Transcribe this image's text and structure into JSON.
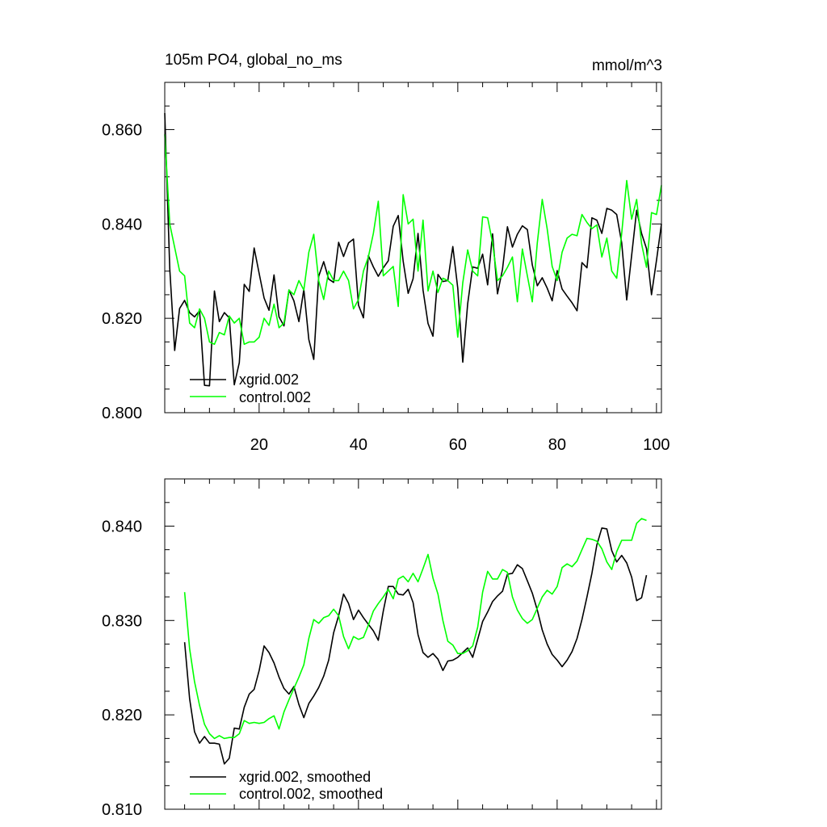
{
  "chart_data": [
    {
      "type": "line",
      "title": "105m PO4, global_no_ms",
      "units_label": "mmol/m^3",
      "xlim": [
        1,
        101
      ],
      "ylim": [
        0.8,
        0.87
      ],
      "x_ticks": [
        20,
        40,
        60,
        80,
        100
      ],
      "x_tick_labels": [
        "20",
        "40",
        "60",
        "80",
        "100"
      ],
      "y_ticks": [
        0.8,
        0.82,
        0.84,
        0.86
      ],
      "y_tick_labels": [
        "0.800",
        "0.820",
        "0.840",
        "0.860"
      ],
      "grid": false,
      "legend_position": "bottom-left",
      "series": [
        {
          "name": "xgrid.002",
          "color": "#000000",
          "x_start": 1,
          "values": [
            0.8635,
            0.8305,
            0.8132,
            0.8221,
            0.8238,
            0.8212,
            0.8203,
            0.8216,
            0.8058,
            0.8057,
            0.8258,
            0.8193,
            0.8212,
            0.8201,
            0.8059,
            0.8106,
            0.8272,
            0.8257,
            0.8349,
            0.8295,
            0.8243,
            0.8217,
            0.8292,
            0.8203,
            0.8184,
            0.826,
            0.8237,
            0.8193,
            0.8261,
            0.8155,
            0.8113,
            0.8289,
            0.832,
            0.8283,
            0.8276,
            0.8361,
            0.8331,
            0.836,
            0.8368,
            0.8228,
            0.8201,
            0.8333,
            0.8309,
            0.8289,
            0.8307,
            0.8322,
            0.8395,
            0.8418,
            0.8321,
            0.8253,
            0.8284,
            0.838,
            0.826,
            0.8189,
            0.8162,
            0.8293,
            0.8278,
            0.828,
            0.8352,
            0.8264,
            0.8107,
            0.8231,
            0.8309,
            0.8306,
            0.8336,
            0.8271,
            0.8379,
            0.8252,
            0.8304,
            0.8394,
            0.8351,
            0.8378,
            0.8396,
            0.8388,
            0.8313,
            0.8269,
            0.8286,
            0.8264,
            0.8237,
            0.8301,
            0.8262,
            0.8247,
            0.8233,
            0.8216,
            0.8318,
            0.8307,
            0.8413,
            0.8408,
            0.838,
            0.8433,
            0.8429,
            0.842,
            0.836,
            0.8239,
            0.8333,
            0.8429,
            0.838,
            0.8348,
            0.825,
            0.8323,
            0.84
          ]
        },
        {
          "name": "control.002",
          "color": "#00ff00",
          "x_start": 1,
          "values": [
            0.859,
            0.84,
            0.835,
            0.83,
            0.829,
            0.819,
            0.818,
            0.822,
            0.82,
            0.815,
            0.8145,
            0.817,
            0.8165,
            0.8205,
            0.819,
            0.82,
            0.8145,
            0.815,
            0.815,
            0.816,
            0.82,
            0.8185,
            0.823,
            0.818,
            0.819,
            0.826,
            0.825,
            0.828,
            0.826,
            0.834,
            0.8378,
            0.828,
            0.824,
            0.83,
            0.828,
            0.828,
            0.83,
            0.828,
            0.822,
            0.824,
            0.83,
            0.833,
            0.838,
            0.8448,
            0.829,
            0.83,
            0.831,
            0.8225,
            0.8462,
            0.84,
            0.841,
            0.83,
            0.8408,
            0.8258,
            0.83,
            0.8255,
            0.8285,
            0.828,
            0.827,
            0.816,
            0.8275,
            0.8345,
            0.83,
            0.829,
            0.8415,
            0.8413,
            0.836,
            0.828,
            0.829,
            0.8308,
            0.833,
            0.8235,
            0.8347,
            0.829,
            0.8235,
            0.836,
            0.8452,
            0.839,
            0.831,
            0.828,
            0.834,
            0.837,
            0.8378,
            0.8375,
            0.842,
            0.8403,
            0.839,
            0.8398,
            0.833,
            0.837,
            0.83,
            0.8285,
            0.838,
            0.8492,
            0.841,
            0.8452,
            0.8358,
            0.8308,
            0.8424,
            0.842,
            0.8482
          ]
        }
      ]
    },
    {
      "type": "line",
      "xlim": [
        1,
        101
      ],
      "ylim": [
        0.81,
        0.845
      ],
      "x_ticks": [
        20,
        40,
        60,
        80,
        100
      ],
      "y_ticks": [
        0.81,
        0.82,
        0.83,
        0.84
      ],
      "y_tick_labels": [
        "0.810",
        "0.820",
        "0.830",
        "0.840"
      ],
      "grid": false,
      "legend_position": "bottom-left",
      "series": [
        {
          "name": "xgrid.002, smoothed",
          "color": "#000000",
          "x_start": 5,
          "values": [
            0.8277,
            0.8217,
            0.8182,
            0.817,
            0.8177,
            0.817,
            0.817,
            0.8169,
            0.8148,
            0.8154,
            0.8186,
            0.8185,
            0.8208,
            0.8222,
            0.8227,
            0.8247,
            0.8273,
            0.8266,
            0.8255,
            0.824,
            0.8228,
            0.8222,
            0.823,
            0.8211,
            0.8197,
            0.8212,
            0.822,
            0.8229,
            0.8241,
            0.8258,
            0.8287,
            0.8305,
            0.8328,
            0.8318,
            0.8301,
            0.8311,
            0.8303,
            0.8296,
            0.8289,
            0.8279,
            0.831,
            0.8336,
            0.8336,
            0.8328,
            0.8327,
            0.8333,
            0.8319,
            0.8285,
            0.8266,
            0.8261,
            0.8265,
            0.8259,
            0.8247,
            0.8257,
            0.8258,
            0.8261,
            0.8266,
            0.8271,
            0.8261,
            0.828,
            0.8299,
            0.8309,
            0.832,
            0.8326,
            0.8331,
            0.8349,
            0.835,
            0.8359,
            0.8355,
            0.8342,
            0.8329,
            0.8311,
            0.829,
            0.8275,
            0.8264,
            0.8258,
            0.8251,
            0.8258,
            0.8267,
            0.8281,
            0.8301,
            0.8325,
            0.835,
            0.838,
            0.8398,
            0.8397,
            0.8374,
            0.8362,
            0.8369,
            0.8361,
            0.8346,
            0.8321,
            0.8324,
            0.8348
          ]
        },
        {
          "name": "control.002, smoothed",
          "color": "#00ff00",
          "x_start": 5,
          "values": [
            0.833,
            0.827,
            0.8235,
            0.821,
            0.819,
            0.818,
            0.8175,
            0.8178,
            0.8175,
            0.8176,
            0.8176,
            0.818,
            0.8194,
            0.8191,
            0.8192,
            0.8191,
            0.8192,
            0.8196,
            0.8199,
            0.8185,
            0.8203,
            0.8216,
            0.8228,
            0.824,
            0.8253,
            0.8281,
            0.8301,
            0.8297,
            0.8303,
            0.8305,
            0.8312,
            0.8305,
            0.8283,
            0.827,
            0.8283,
            0.828,
            0.8282,
            0.8295,
            0.831,
            0.8318,
            0.8325,
            0.8333,
            0.8323,
            0.8344,
            0.8347,
            0.8341,
            0.835,
            0.8341,
            0.8355,
            0.837,
            0.8345,
            0.8328,
            0.83,
            0.8278,
            0.8274,
            0.8265,
            0.8265,
            0.8268,
            0.8273,
            0.8293,
            0.833,
            0.8352,
            0.8344,
            0.8344,
            0.8354,
            0.8351,
            0.8325,
            0.8311,
            0.8302,
            0.8297,
            0.8301,
            0.8313,
            0.8325,
            0.8332,
            0.8328,
            0.8336,
            0.8356,
            0.836,
            0.8357,
            0.8363,
            0.8375,
            0.8387,
            0.8386,
            0.8384,
            0.8376,
            0.8362,
            0.8354,
            0.8373,
            0.8385,
            0.8385,
            0.8385,
            0.8403,
            0.8408,
            0.8406
          ]
        }
      ]
    }
  ]
}
